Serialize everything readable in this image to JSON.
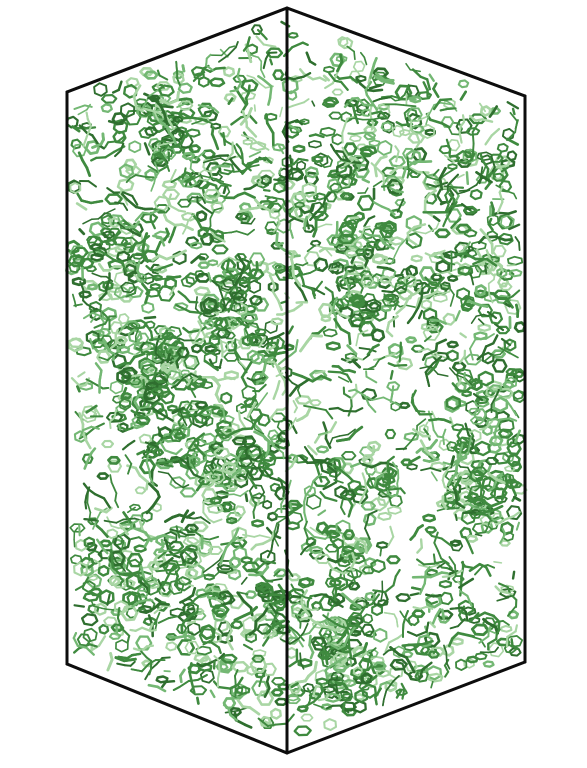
{
  "figure": {
    "subject": "",
    "colors": {
      "background": "#ffffff",
      "box_edge": "#0d0d0d",
      "bond_dark": "#2f6f2f",
      "bond_mid": "#3f8a3f",
      "bond_light": "#74b874",
      "bond_highlight": "#a9d6a4"
    },
    "icons": []
  }
}
